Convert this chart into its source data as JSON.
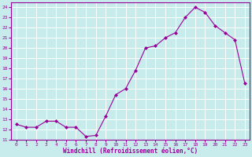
{
  "x": [
    0,
    1,
    2,
    3,
    4,
    5,
    6,
    7,
    8,
    9,
    10,
    11,
    12,
    13,
    14,
    15,
    16,
    17,
    18,
    19,
    20,
    21,
    22,
    23
  ],
  "y": [
    12.5,
    12.2,
    12.2,
    12.8,
    12.8,
    12.2,
    12.2,
    11.3,
    11.4,
    13.3,
    15.4,
    16.0,
    17.8,
    20.0,
    20.2,
    21.0,
    21.5,
    23.0,
    24.0,
    23.5,
    22.2,
    21.5,
    20.8,
    16.5
  ],
  "line_color": "#990099",
  "marker": "D",
  "marker_size": 2,
  "bg_color": "#c8ecec",
  "grid_color": "#ffffff",
  "ylim": [
    11,
    24.5
  ],
  "yticks": [
    11,
    12,
    13,
    14,
    15,
    16,
    17,
    18,
    19,
    20,
    21,
    22,
    23,
    24
  ],
  "xlabel": "Windchill (Refroidissement éolien,°C)",
  "xlabel_color": "#990099",
  "tick_color": "#990099",
  "axis_color": "#990099",
  "font_family": "monospace"
}
